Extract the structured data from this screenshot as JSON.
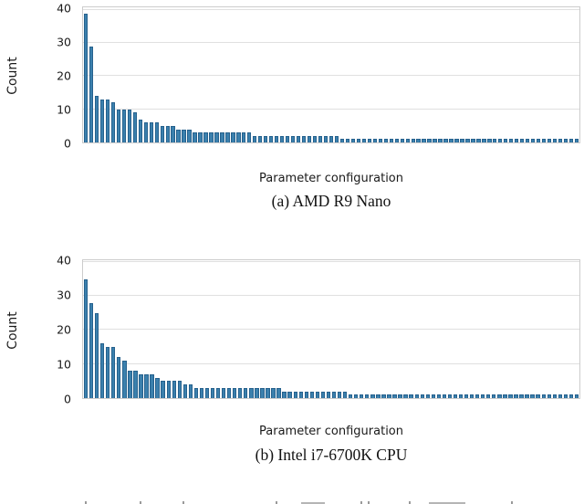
{
  "colors": {
    "bar_fill": "#3b80ad",
    "bar_edge": "#26618d",
    "grid_line": "#e0e0e0",
    "frame": "#cccccc",
    "text": "#1a1a1a"
  },
  "chart_data": [
    {
      "type": "bar",
      "caption": "(a) AMD R9 Nano",
      "xlabel": "Parameter configuration",
      "ylabel": "Count",
      "yticks": [
        0,
        10,
        20,
        30,
        40
      ],
      "ylim": [
        0,
        40.8
      ],
      "grid": "horizontal",
      "legend": "none",
      "x_tick_labels": "none (one bar per parameter configuration, sorted descending)",
      "values": [
        39,
        29,
        14,
        13,
        13,
        12,
        10,
        10,
        10,
        9,
        7,
        6,
        6,
        6,
        5,
        5,
        5,
        4,
        4,
        4,
        3,
        3,
        3,
        3,
        3,
        3,
        3,
        3,
        3,
        3,
        3,
        2,
        2,
        2,
        2,
        2,
        2,
        2,
        2,
        2,
        2,
        2,
        2,
        2,
        2,
        2,
        2,
        1,
        1,
        1,
        1,
        1,
        1,
        1,
        1,
        1,
        1,
        1,
        1,
        1,
        1,
        1,
        1,
        1,
        1,
        1,
        1,
        1,
        1,
        1,
        1,
        1,
        1,
        1,
        1,
        1,
        1,
        1,
        1,
        1,
        1,
        1,
        1,
        1,
        1,
        1,
        1,
        1,
        1,
        1,
        1
      ]
    },
    {
      "type": "bar",
      "caption": "(b) Intel i7-6700K CPU",
      "xlabel": "Parameter configuration",
      "ylabel": "Count",
      "yticks": [
        0,
        10,
        20,
        30,
        40
      ],
      "ylim": [
        0,
        40.5
      ],
      "grid": "horizontal",
      "legend": "none",
      "x_tick_labels": "none (one bar per parameter configuration, sorted descending)",
      "values": [
        35,
        28,
        25,
        16,
        15,
        15,
        12,
        11,
        8,
        8,
        7,
        7,
        7,
        6,
        5,
        5,
        5,
        5,
        4,
        4,
        3,
        3,
        3,
        3,
        3,
        3,
        3,
        3,
        3,
        3,
        3,
        3,
        3,
        3,
        3,
        3,
        2,
        2,
        2,
        2,
        2,
        2,
        2,
        2,
        2,
        2,
        2,
        2,
        1,
        1,
        1,
        1,
        1,
        1,
        1,
        1,
        1,
        1,
        1,
        1,
        1,
        1,
        1,
        1,
        1,
        1,
        1,
        1,
        1,
        1,
        1,
        1,
        1,
        1,
        1,
        1,
        1,
        1,
        1,
        1,
        1,
        1,
        1,
        1,
        1,
        1,
        1,
        1,
        1,
        1
      ]
    }
  ]
}
